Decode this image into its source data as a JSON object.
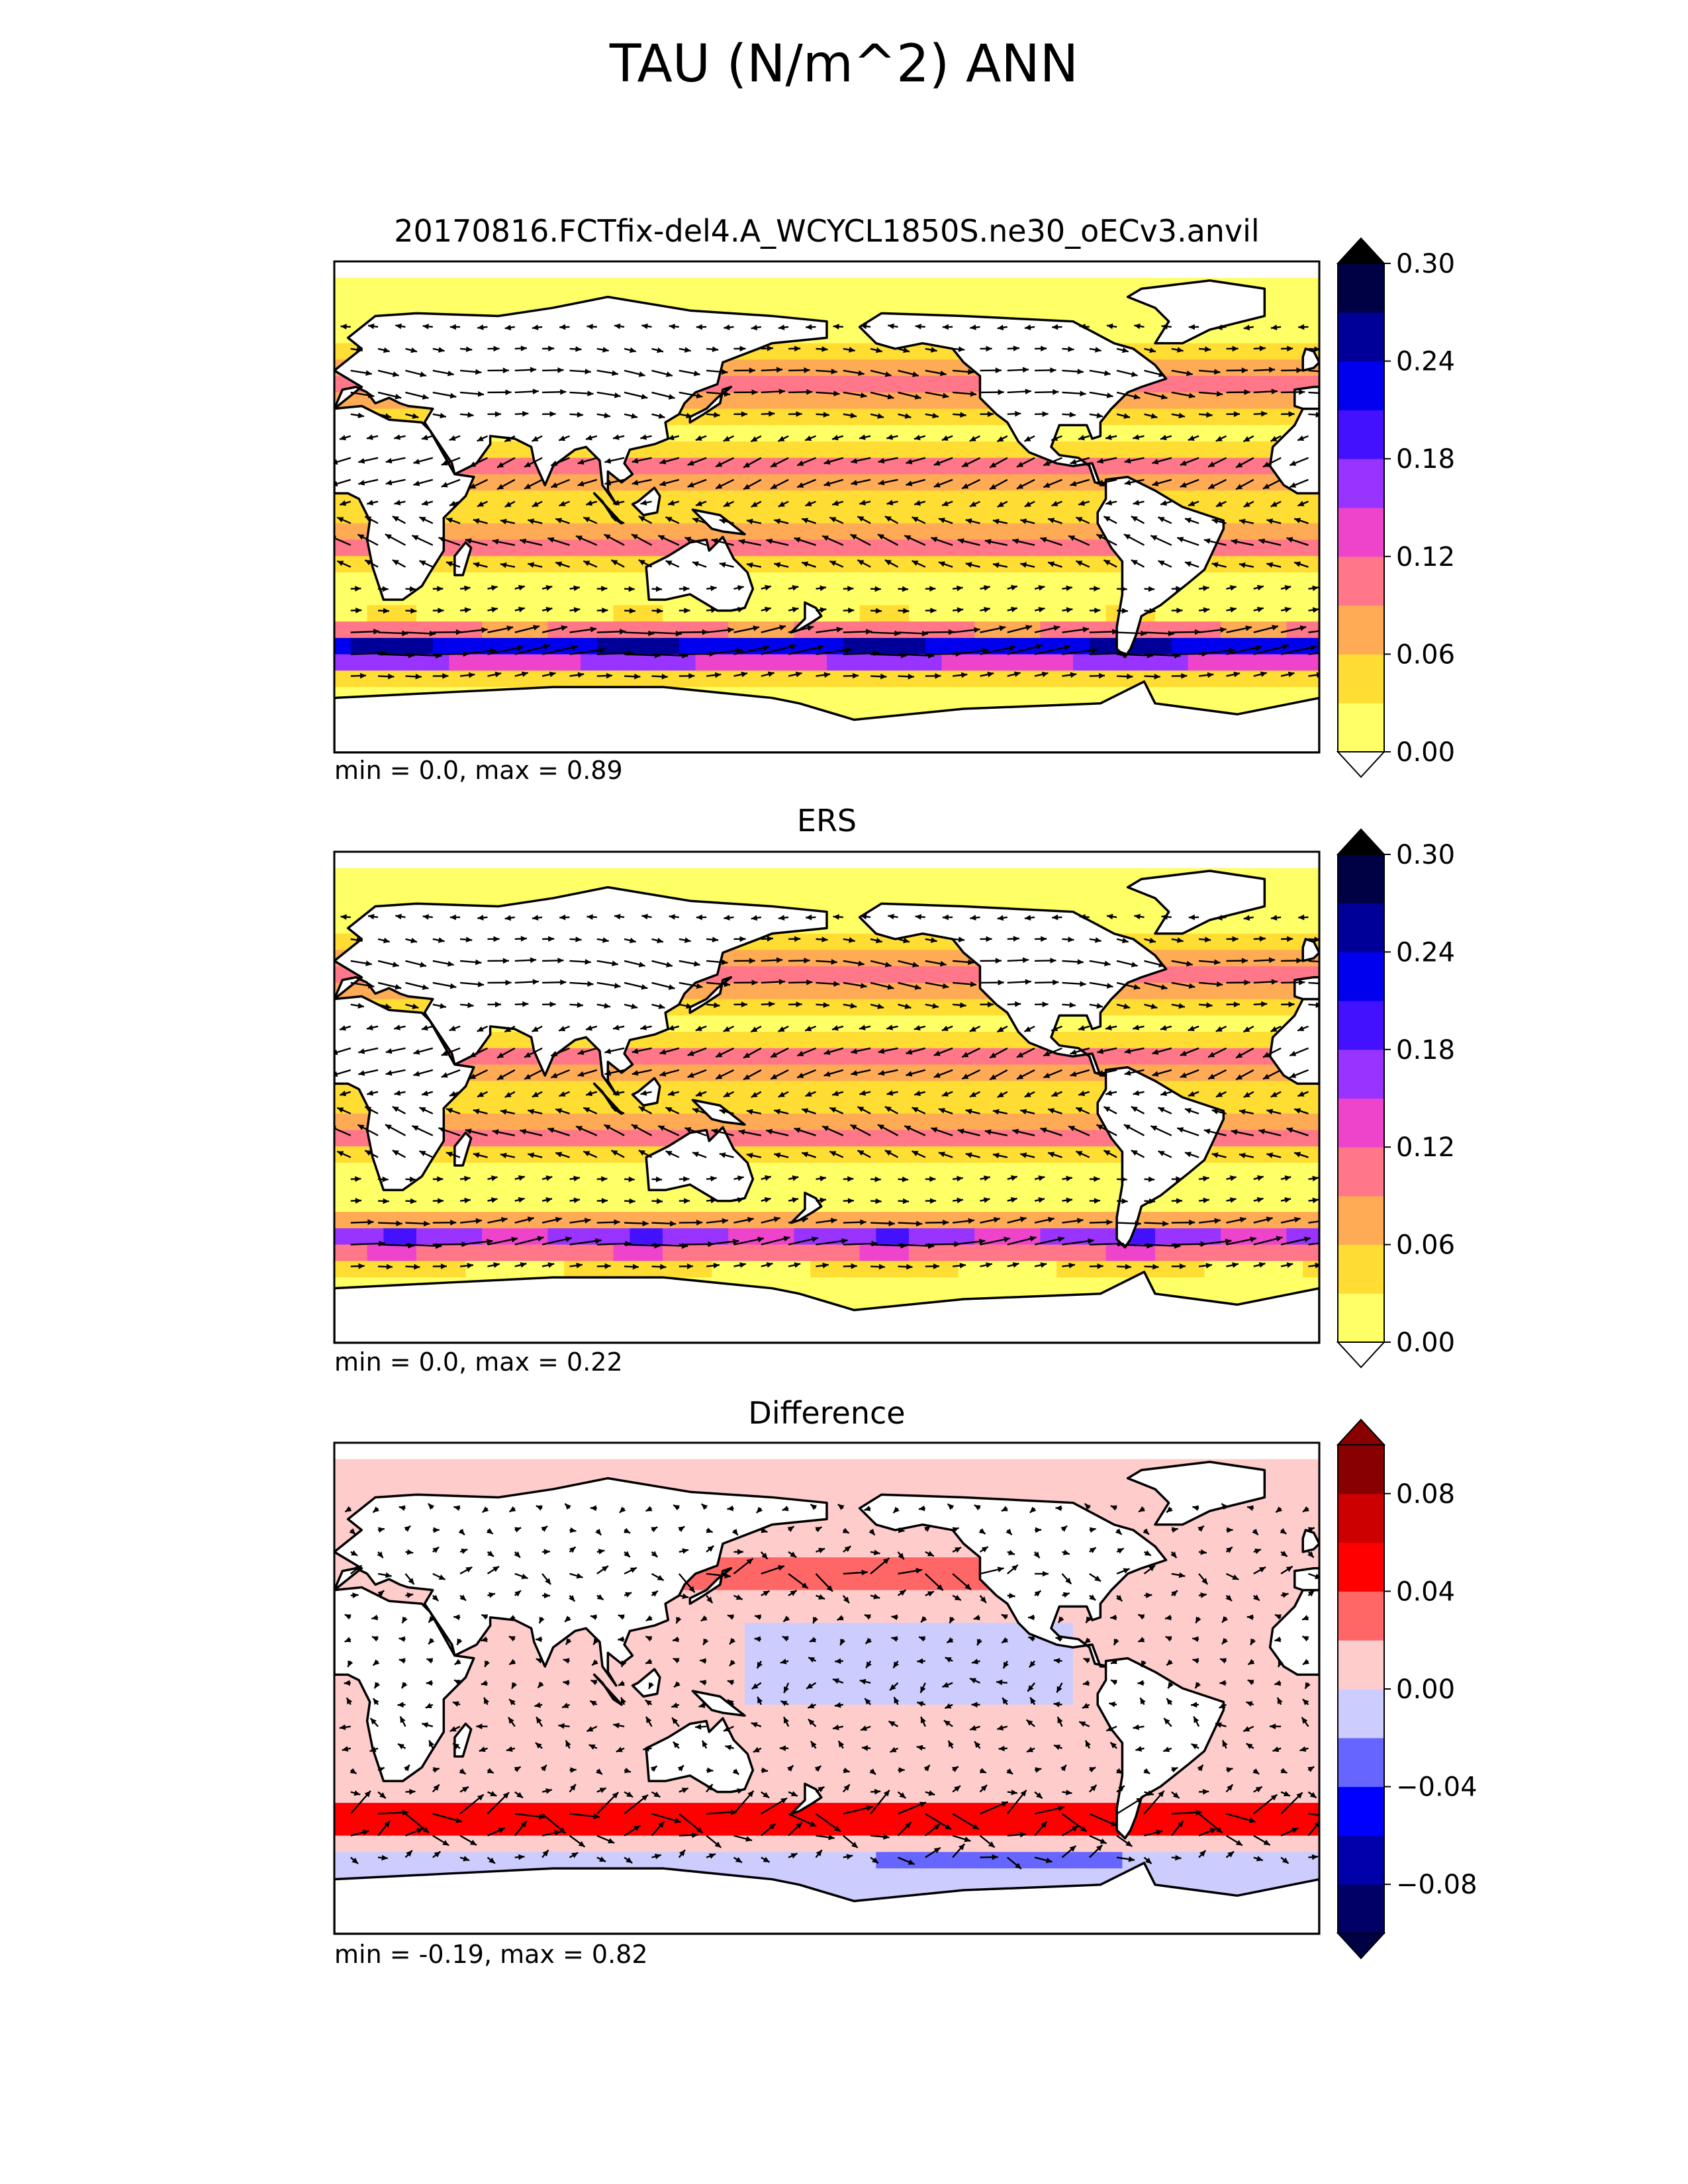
{
  "figure": {
    "title": "TAU (N/m^2) ANN"
  },
  "panels": [
    {
      "title": "20170816.FCTfix-del4.A_WCYCL1850S.ne30_oECv3.anvil",
      "stats": "min = 0.0, max = 0.89"
    },
    {
      "title": "ERS",
      "stats": "min = 0.0, max = 0.22"
    },
    {
      "title": "Difference",
      "stats": "min = -0.19, max = 0.82"
    }
  ],
  "colorbars": {
    "magnitude": {
      "ticks": [
        "0.00",
        "0.06",
        "0.12",
        "0.18",
        "0.24",
        "0.30"
      ],
      "levels": [
        0.0,
        0.03,
        0.06,
        0.09,
        0.12,
        0.15,
        0.18,
        0.21,
        0.24,
        0.27,
        0.3
      ],
      "colors": [
        "#ffff66",
        "#ffdd33",
        "#ffaa55",
        "#ff7788",
        "#ee44cc",
        "#9933ff",
        "#4411ff",
        "#0000ee",
        "#000099",
        "#000044"
      ],
      "extend_min_color": "#ffffff",
      "extend_max_color": "#000000"
    },
    "difference": {
      "ticks": [
        "0.08",
        "0.04",
        "0.00",
        "−0.04",
        "−0.08"
      ],
      "levels": [
        -0.1,
        -0.08,
        -0.06,
        -0.04,
        -0.02,
        0.0,
        0.02,
        0.04,
        0.06,
        0.08,
        0.1
      ],
      "colors": [
        "#000066",
        "#0000aa",
        "#0000ff",
        "#6666ff",
        "#ccccff",
        "#ffcccc",
        "#ff6666",
        "#ff0000",
        "#cc0000",
        "#880000"
      ],
      "extend_min_color": "#000044",
      "extend_max_color": "#880000"
    }
  },
  "chart_data": [
    {
      "type": "heatmap",
      "subtype": "filled-contour map with wind stress vectors",
      "title": "20170816.FCTfix-del4.A_WCYCL1850S.ne30_oECv3.anvil",
      "projection": "global lon/lat, centered on Pacific",
      "colorbar": "magnitude",
      "vmin": 0.0,
      "vmax": 0.3,
      "field_min": 0.0,
      "field_max": 0.89,
      "vectors": true
    },
    {
      "type": "heatmap",
      "subtype": "filled-contour map with wind stress vectors",
      "title": "ERS",
      "projection": "global lon/lat, centered on Pacific",
      "colorbar": "magnitude",
      "vmin": 0.0,
      "vmax": 0.3,
      "field_min": 0.0,
      "field_max": 0.22,
      "vectors": true
    },
    {
      "type": "heatmap",
      "subtype": "filled-contour map with wind stress vectors",
      "title": "Difference",
      "projection": "global lon/lat, centered on Pacific",
      "colorbar": "difference",
      "vmin": -0.1,
      "vmax": 0.1,
      "field_min": -0.19,
      "field_max": 0.82,
      "vectors": true
    }
  ]
}
